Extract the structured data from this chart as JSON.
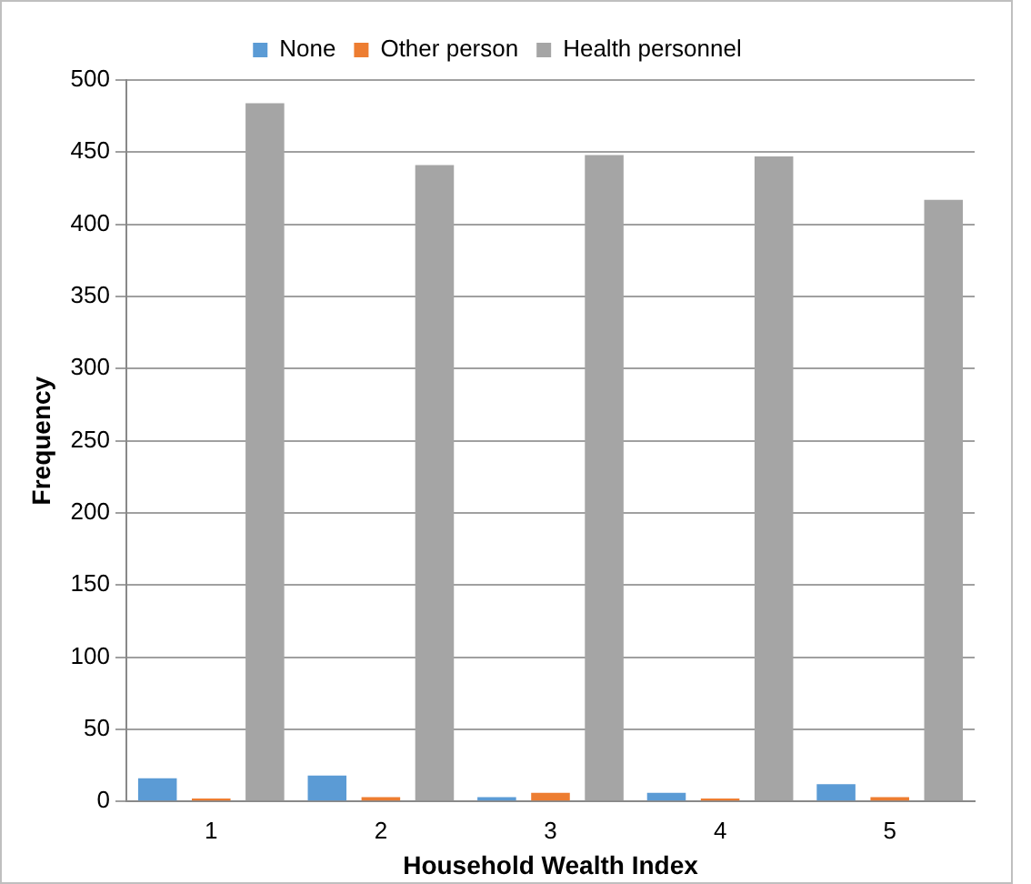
{
  "chart_data": {
    "type": "bar",
    "xlabel": "Household Wealth Index",
    "ylabel": "Frequency",
    "categories": [
      "1",
      "2",
      "3",
      "4",
      "5"
    ],
    "series": [
      {
        "name": "None",
        "color": "#5b9bd5",
        "values": [
          16,
          18,
          3,
          6,
          12
        ]
      },
      {
        "name": "Other person",
        "color": "#ed7d31",
        "values": [
          2,
          3,
          6,
          2,
          3
        ]
      },
      {
        "name": "Health personnel",
        "color": "#a5a5a5",
        "values": [
          484,
          441,
          448,
          447,
          417
        ]
      }
    ],
    "ylim": [
      0,
      500
    ],
    "yticks": [
      0,
      50,
      100,
      150,
      200,
      250,
      300,
      350,
      400,
      450,
      500
    ],
    "grid": "y",
    "legend": "top"
  }
}
